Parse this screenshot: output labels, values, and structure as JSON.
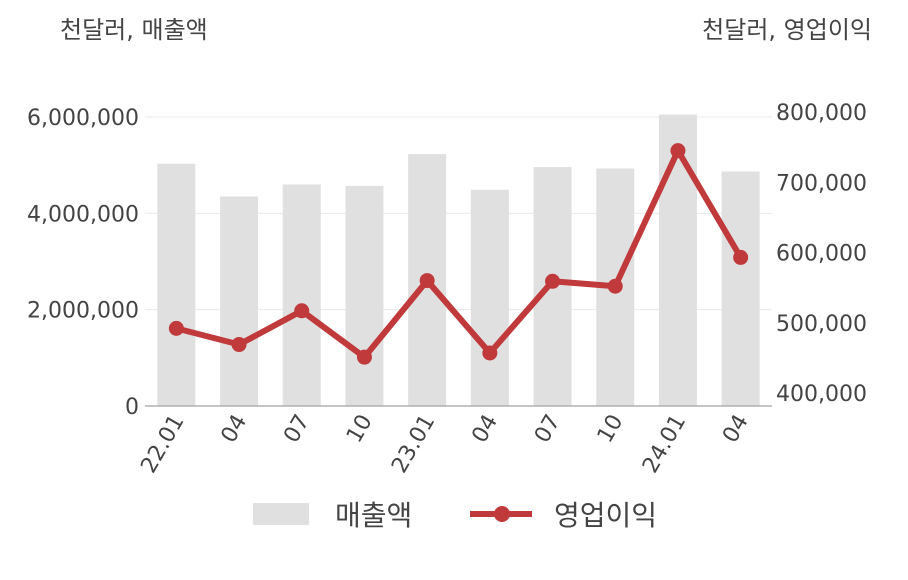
{
  "left_unit_label": "천달러, 매출액",
  "right_unit_label": "천달러, 영업이익",
  "legend": {
    "bar_label": "매출액",
    "line_label": "영업이익"
  },
  "colors": {
    "bar": "#e0e0e0",
    "line": "#c0393b",
    "grid": "#e9e9e9",
    "axis": "#b0b0b0"
  },
  "chart_data": {
    "type": "bar",
    "categories": [
      "22.01",
      "04",
      "07",
      "10",
      "23.01",
      "04",
      "07",
      "10",
      "24.01",
      "04"
    ],
    "series": [
      {
        "name": "매출액",
        "type": "bar",
        "axis": "left",
        "values": [
          5030000,
          4350000,
          4600000,
          4570000,
          5230000,
          4490000,
          4960000,
          4930000,
          6050000,
          4870000
        ]
      },
      {
        "name": "영업이익",
        "type": "line",
        "axis": "right",
        "values": [
          492000,
          469000,
          517000,
          451000,
          560000,
          457000,
          559000,
          552000,
          745000,
          593000
        ]
      }
    ],
    "left_axis": {
      "min": 0,
      "max": 6000000,
      "ticks": [
        0,
        2000000,
        4000000,
        6000000
      ],
      "tick_labels": [
        "0",
        "2,000,000",
        "4,000,000",
        "6,000,000"
      ]
    },
    "right_axis": {
      "min": 400000,
      "max": 800000,
      "ticks": [
        400000,
        500000,
        600000,
        700000,
        800000
      ],
      "tick_labels": [
        "400,000",
        "500,000",
        "600,000",
        "700,000",
        "800,000"
      ]
    },
    "grid": true,
    "legend_position": "bottom"
  }
}
